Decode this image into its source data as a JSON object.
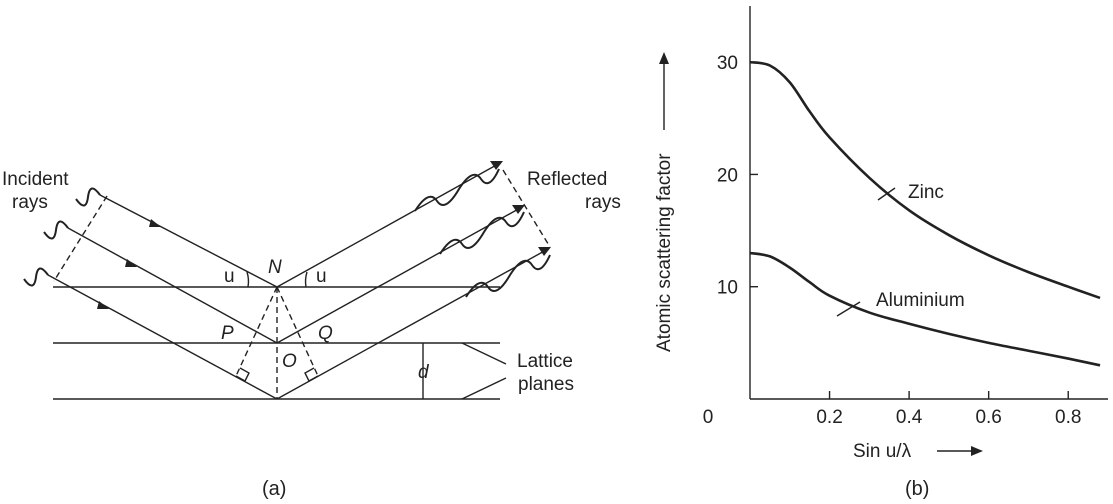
{
  "figure_a": {
    "caption": "(a)",
    "incident_line1": "Incident",
    "incident_line2": "rays",
    "reflected_line1": "Reflected",
    "reflected_line2": "rays",
    "lattice_line1": "Lattice",
    "lattice_line2": "planes",
    "point_n": "N",
    "point_p": "P",
    "point_q": "Q",
    "point_o": "O",
    "spacing_d": "d",
    "angle_left": "u",
    "angle_right": "u"
  },
  "figure_b": {
    "caption": "(b)",
    "label_zinc": "Zinc",
    "label_aluminium": "Aluminium"
  },
  "chart_data": {
    "type": "line",
    "xlabel": "Sin u/λ",
    "ylabel": "Atomic scattering factor",
    "xlim": [
      0,
      0.9
    ],
    "ylim": [
      0,
      35
    ],
    "x_ticks": [
      "0",
      "0.2",
      "0.4",
      "0.6",
      "0.8"
    ],
    "y_ticks": [
      "10",
      "20",
      "30"
    ],
    "grid": false,
    "series": [
      {
        "name": "Zinc",
        "x": [
          0,
          0.05,
          0.1,
          0.15,
          0.2,
          0.3,
          0.4,
          0.5,
          0.6,
          0.7,
          0.8,
          0.88
        ],
        "y": [
          30,
          29.7,
          28.2,
          25.6,
          23.3,
          19.7,
          16.8,
          14.6,
          12.8,
          11.3,
          10.0,
          9.0
        ]
      },
      {
        "name": "Aluminium",
        "x": [
          0,
          0.05,
          0.1,
          0.15,
          0.2,
          0.3,
          0.4,
          0.5,
          0.6,
          0.7,
          0.8,
          0.88
        ],
        "y": [
          13,
          12.7,
          11.7,
          10.4,
          9.2,
          7.7,
          6.7,
          5.8,
          5.0,
          4.3,
          3.6,
          3.0
        ]
      }
    ]
  }
}
